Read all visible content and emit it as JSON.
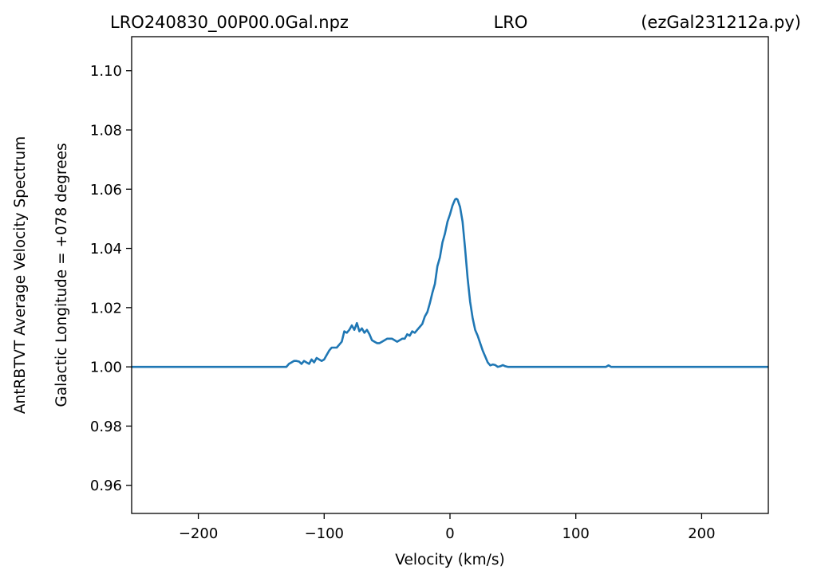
{
  "chart_data": {
    "type": "line",
    "title": {
      "left": "LRO240830_00P00.0Gal.npz",
      "center": "LRO",
      "right": "(ezGal231212a.py)"
    },
    "xlabel": "Velocity (km/s)",
    "ylabel_outer": "AntRBTVT Average Velocity Spectrum",
    "ylabel_inner": "Galactic Longitude = +078 degrees",
    "xlim": [
      -253,
      253
    ],
    "ylim": [
      0.9505,
      1.1115
    ],
    "xticks": [
      -200,
      -100,
      0,
      100,
      200
    ],
    "xtick_labels": [
      "−200",
      "−100",
      "0",
      "100",
      "200"
    ],
    "yticks": [
      0.96,
      0.98,
      1.0,
      1.02,
      1.04,
      1.06,
      1.08,
      1.1
    ],
    "ytick_labels": [
      "0.96",
      "0.98",
      "1.00",
      "1.02",
      "1.04",
      "1.06",
      "1.08",
      "1.10"
    ],
    "grid": false,
    "line_color": "#1f77b4",
    "series": [
      {
        "x": [
          -253,
          -130,
          -128,
          -126,
          -124,
          -122,
          -120,
          -118,
          -116,
          -114,
          -112,
          -110,
          -108,
          -106,
          -104,
          -102,
          -100,
          -98,
          -96,
          -94,
          -92,
          -90,
          -88,
          -86,
          -84,
          -82,
          -80,
          -78,
          -76,
          -74,
          -72,
          -70,
          -68,
          -66,
          -64,
          -62,
          -60,
          -58,
          -56,
          -54,
          -52,
          -50,
          -48,
          -46,
          -44,
          -42,
          -40,
          -38,
          -36,
          -34,
          -32,
          -30,
          -28,
          -26,
          -24,
          -22,
          -20,
          -18,
          -16,
          -14,
          -12,
          -10,
          -8,
          -6,
          -4,
          -2,
          0,
          2,
          4,
          5,
          6,
          8,
          10,
          12,
          14,
          16,
          18,
          20,
          22,
          24,
          26,
          28,
          30,
          32,
          34,
          36,
          38,
          40,
          42,
          44,
          46,
          50,
          60,
          80,
          100,
          120,
          124,
          126,
          128,
          253
        ],
        "y": [
          1.0,
          1.0,
          1.001,
          1.0015,
          1.002,
          1.002,
          1.0018,
          1.001,
          1.002,
          1.0015,
          1.001,
          1.0025,
          1.0015,
          1.003,
          1.0025,
          1.002,
          1.0025,
          1.004,
          1.0055,
          1.0065,
          1.0065,
          1.0065,
          1.0075,
          1.0085,
          1.012,
          1.0115,
          1.0125,
          1.014,
          1.0125,
          1.0148,
          1.012,
          1.013,
          1.0115,
          1.0125,
          1.011,
          1.009,
          1.0085,
          1.008,
          1.008,
          1.0085,
          1.009,
          1.0095,
          1.0095,
          1.0095,
          1.009,
          1.0085,
          1.009,
          1.0095,
          1.0095,
          1.011,
          1.0105,
          1.012,
          1.0115,
          1.0125,
          1.0135,
          1.0145,
          1.017,
          1.0185,
          1.0215,
          1.025,
          1.028,
          1.034,
          1.037,
          1.042,
          1.045,
          1.049,
          1.0515,
          1.0545,
          1.0565,
          1.0568,
          1.0565,
          1.054,
          1.049,
          1.04,
          1.03,
          1.022,
          1.0165,
          1.0125,
          1.0105,
          1.008,
          1.0055,
          1.0035,
          1.0015,
          1.0005,
          1.0008,
          1.0006,
          1.0,
          1.0002,
          1.0006,
          1.0002,
          1.0,
          1.0,
          1.0,
          1.0,
          1.0,
          1.0,
          1.0,
          1.0005,
          1.0,
          1.0
        ]
      }
    ]
  }
}
